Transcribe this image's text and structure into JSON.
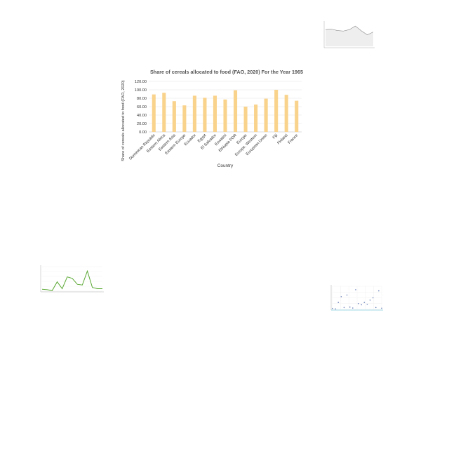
{
  "chart_data": [
    {
      "id": "main",
      "type": "bar",
      "title": "Share of cereals allocated to food (FAO, 2020)  For the Year 1965",
      "xlabel": "Country",
      "ylabel": "Share of cereals allocated to food (FAO, 2020)",
      "ylim": [
        0,
        120
      ],
      "yticks": [
        "0.00",
        "20.00",
        "40.00",
        "60.00",
        "80.00",
        "100.00",
        "120.00"
      ],
      "grid": true,
      "legend": "none",
      "bar_color": "#f9d38c",
      "categories": [
        "Dominican Republic",
        "Eastern Africa",
        "Eastern Asia",
        "Eastern Europe",
        "Ecuador",
        "Egypt",
        "El Salvador",
        "Eswatini",
        "Ethiopia PDR",
        "Europe",
        "Europe, Western",
        "European Union",
        "Fiji",
        "Finland",
        "France"
      ],
      "category_labels": [
        "Dominican Republic",
        "Eastern Africa",
        "Eastern Asia",
        "Eastern Europe",
        "Ecuador",
        "Egypt",
        "El Salvador",
        "Eswatini",
        "Ethiopia PDR",
        "Europe",
        "Europe, Western",
        "European Union",
        "Fiji",
        "Finland",
        "France"
      ],
      "values": [
        89,
        93,
        73,
        63,
        86,
        81,
        86,
        77,
        99,
        60,
        65,
        79,
        100,
        88,
        74
      ]
    },
    {
      "id": "thumb-top-right",
      "type": "line",
      "title": "",
      "xlabel": "",
      "ylabel": "",
      "line_color": "#888888",
      "values": [
        70,
        72,
        66,
        64,
        70,
        85,
        65,
        48,
        60
      ]
    },
    {
      "id": "thumb-bottom-left",
      "type": "line",
      "title": "",
      "xlabel": "",
      "ylabel": "",
      "line_color": "#5aa833",
      "values": [
        8,
        6,
        2,
        38,
        10,
        58,
        52,
        28,
        25,
        82,
        15,
        10,
        10
      ]
    },
    {
      "id": "thumb-bottom-right",
      "type": "scatter",
      "title": "",
      "xlabel": "",
      "ylabel": "",
      "point_color": "#6a7fb8",
      "points": [
        [
          1,
          4
        ],
        [
          2,
          2
        ],
        [
          3,
          30
        ],
        [
          4,
          55
        ],
        [
          5,
          8
        ],
        [
          6,
          62
        ],
        [
          7,
          10
        ],
        [
          8,
          6
        ],
        [
          9,
          85
        ],
        [
          10,
          25
        ],
        [
          11,
          20
        ],
        [
          12,
          30
        ],
        [
          13,
          22
        ],
        [
          14,
          40
        ],
        [
          15,
          50
        ],
        [
          16,
          8
        ],
        [
          17,
          80
        ],
        [
          18,
          5
        ]
      ]
    }
  ]
}
